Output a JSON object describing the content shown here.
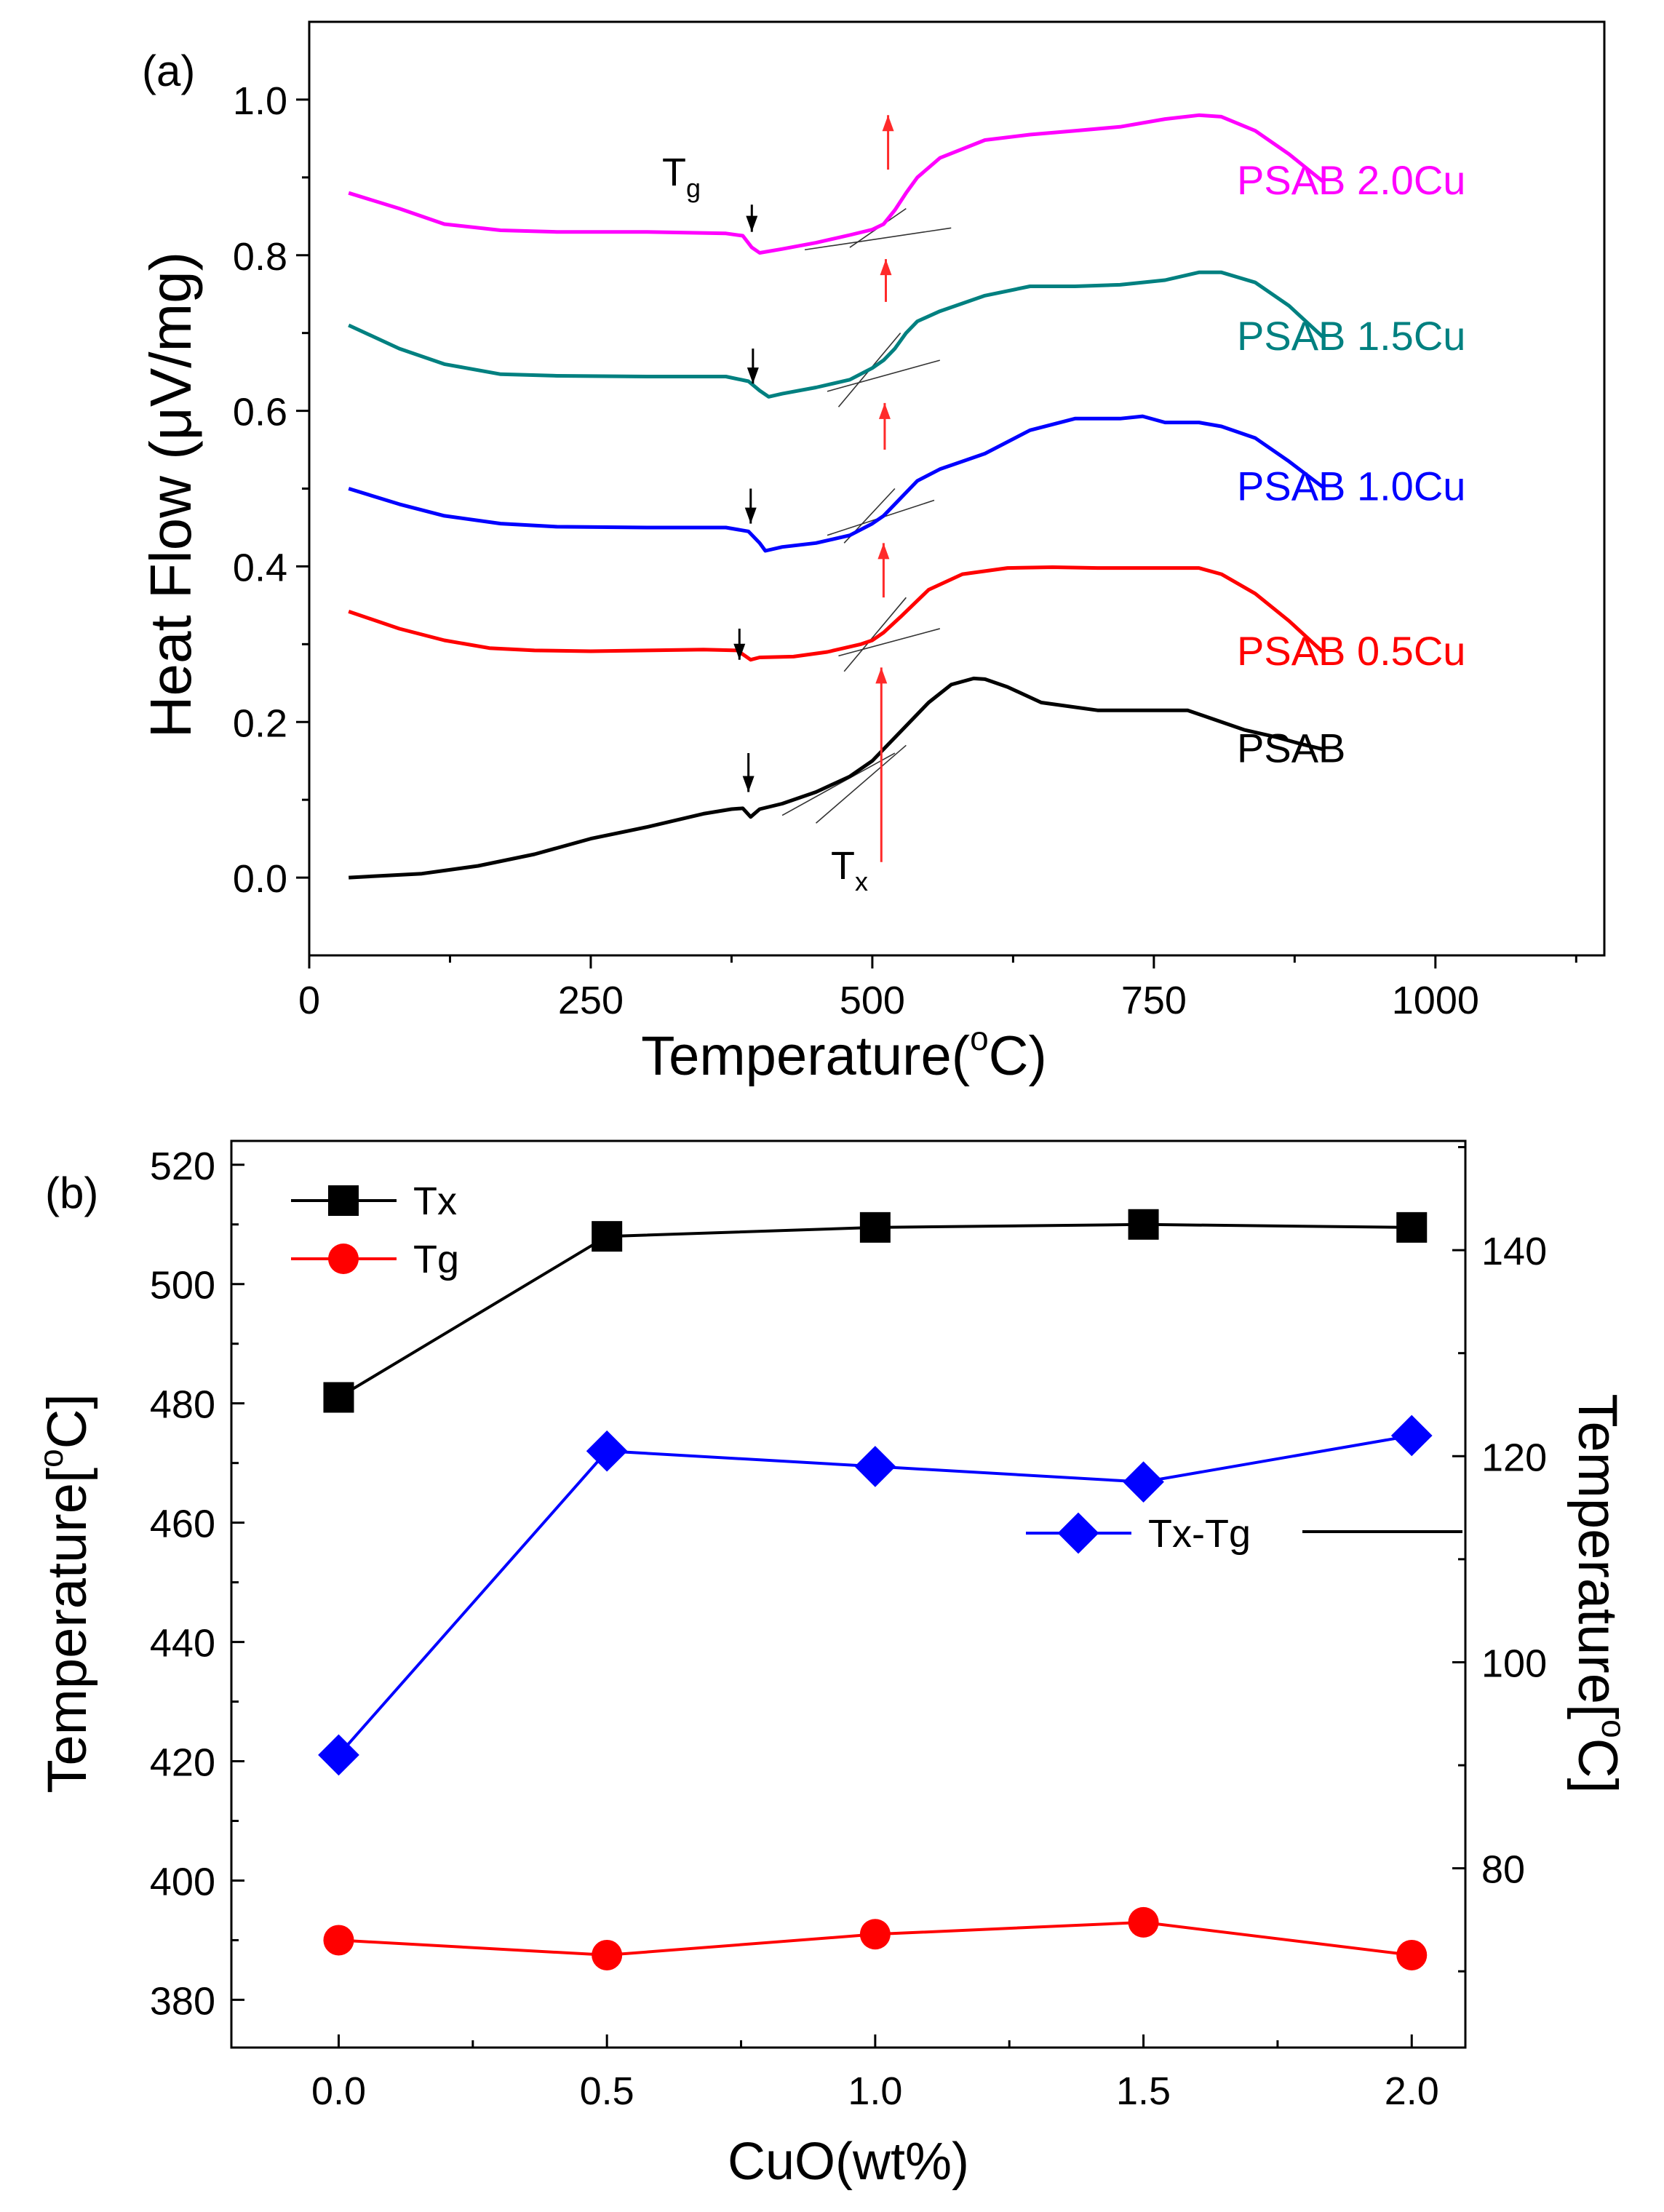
{
  "chart_data": [
    {
      "type": "line",
      "panel_label": "(a)",
      "xlabel": "Temperature(",
      "xlabel_sup": "o",
      "xlabel_end": "C)",
      "ylabel": "Heat Flow (μV/mg)",
      "xlim": [
        0,
        1150
      ],
      "ylim": [
        -0.1,
        1.1
      ],
      "xticks": [
        0,
        250,
        500,
        750,
        1000
      ],
      "xtick_labels": [
        "0",
        "250",
        "500",
        "750",
        "1000"
      ],
      "yticks": [
        0.0,
        0.2,
        0.4,
        0.6,
        0.8,
        1.0
      ],
      "ytick_labels": [
        "0.0",
        "0.2",
        "0.4",
        "0.6",
        "0.8",
        "1.0"
      ],
      "annotations": {
        "tg_main": "T",
        "tg_sub": "g",
        "tx_main": "T",
        "tx_sub": "x"
      },
      "series": [
        {
          "name": "PSAB",
          "color": "#000000",
          "x": [
            35,
            100,
            150,
            200,
            250,
            300,
            350,
            375,
            385,
            392,
            400,
            420,
            450,
            480,
            500,
            520,
            550,
            570,
            590,
            600,
            620,
            650,
            700,
            750,
            780,
            800,
            830,
            860,
            880,
            900
          ],
          "y": [
            0.0,
            0.005,
            0.015,
            0.03,
            0.05,
            0.065,
            0.082,
            0.088,
            0.089,
            0.078,
            0.088,
            0.095,
            0.11,
            0.13,
            0.15,
            0.18,
            0.225,
            0.248,
            0.256,
            0.255,
            0.245,
            0.225,
            0.215,
            0.215,
            0.215,
            0.205,
            0.19,
            0.18,
            0.172,
            0.165
          ]
        },
        {
          "name": "PSAB 0.5Cu",
          "color": "#ff0000",
          "x": [
            35,
            80,
            120,
            160,
            200,
            250,
            300,
            350,
            380,
            392,
            400,
            430,
            460,
            490,
            500,
            510,
            525,
            550,
            580,
            620,
            660,
            700,
            750,
            790,
            810,
            840,
            870,
            900
          ],
          "y": [
            0.342,
            0.32,
            0.305,
            0.295,
            0.292,
            0.291,
            0.292,
            0.293,
            0.292,
            0.28,
            0.283,
            0.284,
            0.29,
            0.3,
            0.305,
            0.315,
            0.335,
            0.37,
            0.39,
            0.398,
            0.399,
            0.398,
            0.398,
            0.398,
            0.39,
            0.365,
            0.33,
            0.29
          ]
        },
        {
          "name": "PSAB 1.0Cu",
          "color": "#0000ff",
          "x": [
            35,
            80,
            120,
            170,
            220,
            300,
            370,
            390,
            400,
            405,
            420,
            450,
            480,
            500,
            510,
            520,
            540,
            560,
            600,
            640,
            680,
            720,
            740,
            760,
            790,
            810,
            840,
            870,
            900
          ],
          "y": [
            0.5,
            0.48,
            0.465,
            0.455,
            0.451,
            0.45,
            0.45,
            0.445,
            0.43,
            0.42,
            0.425,
            0.43,
            0.44,
            0.455,
            0.465,
            0.48,
            0.51,
            0.525,
            0.545,
            0.575,
            0.59,
            0.59,
            0.593,
            0.585,
            0.585,
            0.58,
            0.565,
            0.535,
            0.502
          ]
        },
        {
          "name": "PSAB 1.5Cu",
          "color": "#008080",
          "x": [
            35,
            80,
            120,
            170,
            220,
            300,
            370,
            390,
            400,
            408,
            420,
            450,
            480,
            500,
            510,
            520,
            530,
            540,
            560,
            600,
            640,
            680,
            720,
            760,
            790,
            810,
            840,
            870,
            900
          ],
          "y": [
            0.71,
            0.68,
            0.66,
            0.647,
            0.645,
            0.644,
            0.644,
            0.638,
            0.626,
            0.618,
            0.622,
            0.63,
            0.64,
            0.655,
            0.665,
            0.68,
            0.7,
            0.715,
            0.728,
            0.748,
            0.76,
            0.76,
            0.762,
            0.768,
            0.778,
            0.778,
            0.765,
            0.735,
            0.695
          ]
        },
        {
          "name": "PSAB 2.0Cu",
          "color": "#ff00ff",
          "x": [
            35,
            80,
            120,
            170,
            220,
            300,
            370,
            385,
            393,
            400,
            420,
            450,
            480,
            500,
            510,
            520,
            530,
            540,
            560,
            600,
            640,
            680,
            720,
            760,
            790,
            810,
            840,
            870,
            900
          ],
          "y": [
            0.88,
            0.86,
            0.84,
            0.832,
            0.83,
            0.83,
            0.828,
            0.825,
            0.81,
            0.803,
            0.808,
            0.816,
            0.826,
            0.833,
            0.84,
            0.858,
            0.88,
            0.9,
            0.925,
            0.948,
            0.955,
            0.96,
            0.965,
            0.975,
            0.98,
            0.978,
            0.96,
            0.93,
            0.895
          ]
        }
      ]
    },
    {
      "type": "line",
      "panel_label": "(b)",
      "xlabel": "CuO(wt%)",
      "ylabel": "Temperature[",
      "ylabel_sup": "o",
      "ylabel_end": "C]",
      "y2label": "Temperature[",
      "y2label_sup": "o",
      "y2label_end": "C]",
      "categories": [
        0.0,
        0.5,
        1.0,
        1.5,
        2.0
      ],
      "xlim": [
        -0.2,
        2.1
      ],
      "ylim": [
        372,
        524
      ],
      "y2lim": [
        62.6,
        150.6
      ],
      "xticks": [
        0.0,
        0.5,
        1.0,
        1.5,
        2.0
      ],
      "xtick_labels": [
        "0.0",
        "0.5",
        "1.0",
        "1.5",
        "2.0"
      ],
      "yticks": [
        380,
        400,
        420,
        440,
        460,
        480,
        500,
        520
      ],
      "ytick_labels": [
        "380",
        "400",
        "420",
        "440",
        "460",
        "480",
        "500",
        "520"
      ],
      "y2ticks": [
        80,
        100,
        120,
        140
      ],
      "y2tick_labels": [
        "80",
        "100",
        "120",
        "140"
      ],
      "series": [
        {
          "name": "Tx",
          "color": "#000000",
          "marker": "square",
          "axis": "left",
          "values": [
            481,
            508,
            509.5,
            510,
            509.5
          ]
        },
        {
          "name": "Tg",
          "color": "#ff0000",
          "marker": "circle",
          "axis": "left",
          "values": [
            390,
            387.5,
            391,
            393,
            387.5
          ]
        },
        {
          "name": "Tx-Tg",
          "color": "#0000ff",
          "marker": "diamond",
          "axis": "right",
          "values": [
            91,
            120.5,
            119,
            117.5,
            122
          ]
        }
      ]
    }
  ]
}
